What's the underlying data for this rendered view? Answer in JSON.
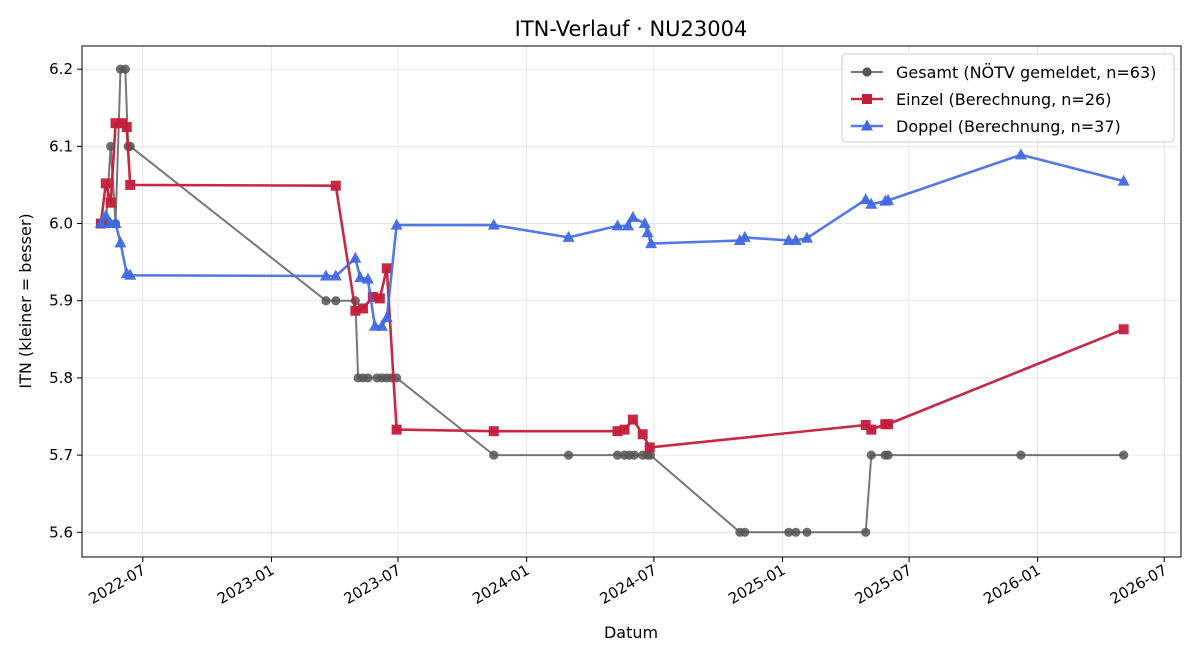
{
  "chart_data": {
    "type": "line",
    "title": "ITN-Verlauf · NU23004",
    "xlabel": "Datum",
    "ylabel": "ITN  (kleiner = besser)",
    "x_type": "date",
    "xlim": [
      "2022-04-05",
      "2026-07-25"
    ],
    "ylim": [
      5.568,
      6.23
    ],
    "x_ticks": [
      "2022-07",
      "2023-01",
      "2023-07",
      "2024-01",
      "2024-07",
      "2025-01",
      "2025-07",
      "2026-01",
      "2026-07"
    ],
    "y_ticks": [
      5.6,
      5.7,
      5.8,
      5.9,
      6.0,
      6.1,
      6.2
    ],
    "grid": true,
    "legend_position": "top-right",
    "series": [
      {
        "name": "Gesamt (NÖTV gemeldet, n=63)",
        "color": "#555555",
        "marker": "circle",
        "points": [
          [
            "2022-05-02",
            6.0
          ],
          [
            "2022-05-09",
            6.0
          ],
          [
            "2022-05-16",
            6.1
          ],
          [
            "2022-05-23",
            6.0
          ],
          [
            "2022-05-30",
            6.2
          ],
          [
            "2022-06-06",
            6.2
          ],
          [
            "2022-06-10",
            6.1
          ],
          [
            "2022-06-13",
            6.1
          ],
          [
            "2023-03-20",
            5.9
          ],
          [
            "2023-04-03",
            5.9
          ],
          [
            "2023-05-01",
            5.9
          ],
          [
            "2023-05-05",
            5.8
          ],
          [
            "2023-05-12",
            5.8
          ],
          [
            "2023-05-19",
            5.8
          ],
          [
            "2023-06-01",
            5.8
          ],
          [
            "2023-06-08",
            5.8
          ],
          [
            "2023-06-15",
            5.8
          ],
          [
            "2023-06-22",
            5.8
          ],
          [
            "2023-06-29",
            5.8
          ],
          [
            "2023-11-15",
            5.7
          ],
          [
            "2024-03-01",
            5.7
          ],
          [
            "2024-05-10",
            5.7
          ],
          [
            "2024-05-20",
            5.7
          ],
          [
            "2024-05-27",
            5.7
          ],
          [
            "2024-06-03",
            5.7
          ],
          [
            "2024-06-15",
            5.7
          ],
          [
            "2024-06-22",
            5.7
          ],
          [
            "2024-06-26",
            5.7
          ],
          [
            "2024-11-01",
            5.6
          ],
          [
            "2024-11-08",
            5.6
          ],
          [
            "2025-01-10",
            5.6
          ],
          [
            "2025-01-20",
            5.6
          ],
          [
            "2025-02-05",
            5.6
          ],
          [
            "2025-04-30",
            5.6
          ],
          [
            "2025-05-08",
            5.7
          ],
          [
            "2025-05-28",
            5.7
          ],
          [
            "2025-06-01",
            5.7
          ],
          [
            "2025-12-08",
            5.7
          ],
          [
            "2026-05-04",
            5.7
          ]
        ]
      },
      {
        "name": "Einzel (Berechnung, n=26)",
        "color": "#c41e3a",
        "marker": "square",
        "points": [
          [
            "2022-05-02",
            6.0
          ],
          [
            "2022-05-09",
            6.052
          ],
          [
            "2022-05-16",
            6.027
          ],
          [
            "2022-05-23",
            6.13
          ],
          [
            "2022-06-01",
            6.13
          ],
          [
            "2022-06-08",
            6.125
          ],
          [
            "2022-06-13",
            6.05
          ],
          [
            "2023-04-03",
            6.049
          ],
          [
            "2023-05-01",
            5.887
          ],
          [
            "2023-05-12",
            5.89
          ],
          [
            "2023-05-26",
            5.905
          ],
          [
            "2023-06-05",
            5.903
          ],
          [
            "2023-06-15",
            5.942
          ],
          [
            "2023-06-29",
            5.733
          ],
          [
            "2023-11-15",
            5.731
          ],
          [
            "2024-05-10",
            5.731
          ],
          [
            "2024-05-20",
            5.733
          ],
          [
            "2024-06-01",
            5.746
          ],
          [
            "2024-06-15",
            5.727
          ],
          [
            "2024-06-25",
            5.71
          ],
          [
            "2025-04-30",
            5.739
          ],
          [
            "2025-05-08",
            5.733
          ],
          [
            "2025-05-28",
            5.74
          ],
          [
            "2025-06-01",
            5.74
          ],
          [
            "2026-05-04",
            5.863
          ]
        ]
      },
      {
        "name": "Doppel (Berechnung, n=37)",
        "color": "#4169e1",
        "marker": "triangle",
        "points": [
          [
            "2022-05-02",
            6.0
          ],
          [
            "2022-05-09",
            6.01
          ],
          [
            "2022-05-16",
            6.0
          ],
          [
            "2022-05-23",
            6.0
          ],
          [
            "2022-05-30",
            5.975
          ],
          [
            "2022-06-08",
            5.935
          ],
          [
            "2022-06-13",
            5.933
          ],
          [
            "2023-03-20",
            5.932
          ],
          [
            "2023-04-03",
            5.932
          ],
          [
            "2023-05-01",
            5.955
          ],
          [
            "2023-05-08",
            5.93
          ],
          [
            "2023-05-19",
            5.928
          ],
          [
            "2023-05-29",
            5.867
          ],
          [
            "2023-06-08",
            5.867
          ],
          [
            "2023-06-15",
            5.878
          ],
          [
            "2023-06-29",
            5.998
          ],
          [
            "2023-11-15",
            5.998
          ],
          [
            "2024-03-01",
            5.982
          ],
          [
            "2024-05-10",
            5.997
          ],
          [
            "2024-05-25",
            5.997
          ],
          [
            "2024-06-01",
            6.008
          ],
          [
            "2024-06-18",
            6.0
          ],
          [
            "2024-06-22",
            5.988
          ],
          [
            "2024-06-27",
            5.974
          ],
          [
            "2024-11-01",
            5.978
          ],
          [
            "2024-11-08",
            5.982
          ],
          [
            "2025-01-10",
            5.978
          ],
          [
            "2025-01-20",
            5.978
          ],
          [
            "2025-02-05",
            5.981
          ],
          [
            "2025-04-30",
            6.031
          ],
          [
            "2025-05-08",
            6.025
          ],
          [
            "2025-05-28",
            6.029
          ],
          [
            "2025-06-01",
            6.03
          ],
          [
            "2025-12-08",
            6.089
          ],
          [
            "2026-05-04",
            6.055
          ]
        ]
      }
    ]
  }
}
